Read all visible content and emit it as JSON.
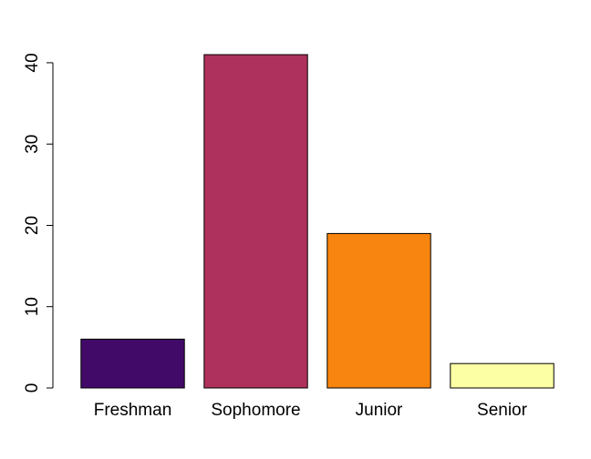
{
  "chart_data": {
    "type": "bar",
    "title": "",
    "xlabel": "",
    "ylabel": "",
    "categories": [
      "Freshman",
      "Sophomore",
      "Junior",
      "Senior"
    ],
    "values": [
      6,
      41,
      19,
      3
    ],
    "colors": [
      "#420A68",
      "#AE305C",
      "#F8850F",
      "#FCFFA4"
    ],
    "ylim": [
      0,
      41
    ],
    "yticks": [
      0,
      10,
      20,
      30,
      40
    ],
    "grid": false,
    "legend": "none"
  }
}
